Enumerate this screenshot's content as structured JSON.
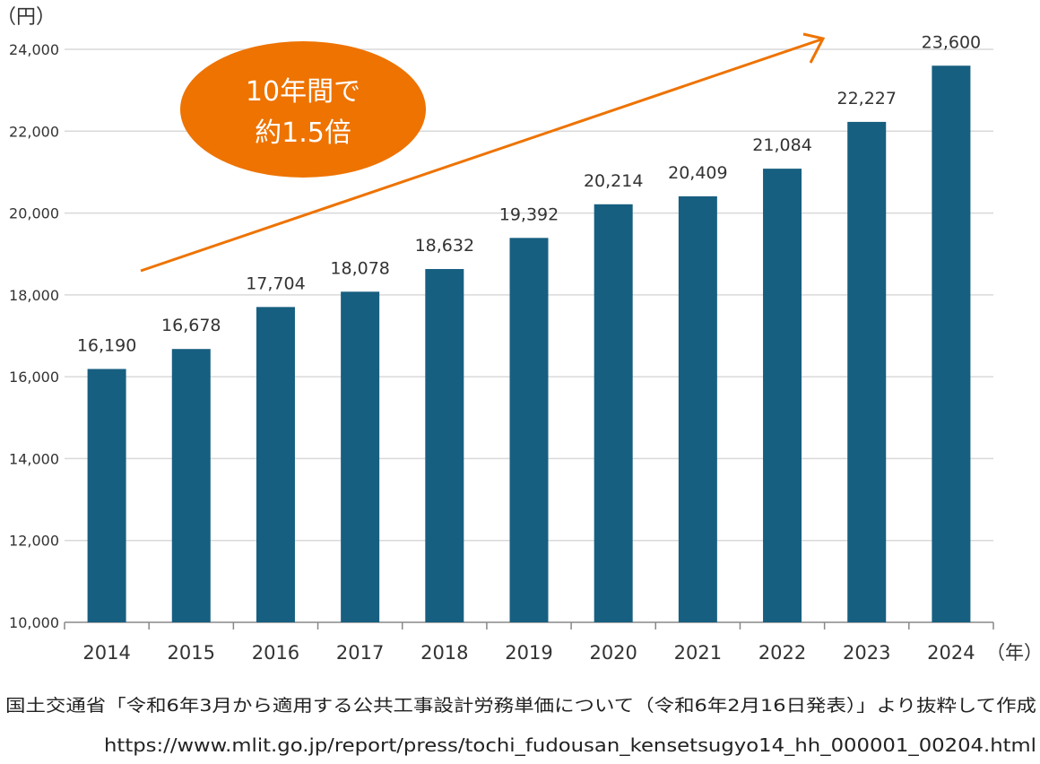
{
  "chart_data": {
    "type": "bar",
    "categories": [
      "2014",
      "2015",
      "2016",
      "2017",
      "2018",
      "2019",
      "2020",
      "2021",
      "2022",
      "2023",
      "2024"
    ],
    "values": [
      16190,
      16678,
      17704,
      18078,
      18632,
      19392,
      20214,
      20409,
      21084,
      22227,
      23600
    ],
    "data_labels": [
      "16,190",
      "16,678",
      "17,704",
      "18,078",
      "18,632",
      "19,392",
      "20,214",
      "20,409",
      "21,084",
      "22,227",
      "23,600"
    ],
    "ylabel": "（円）",
    "xlabel": "（年）",
    "ylim": [
      10000,
      24000
    ],
    "yticks": [
      "10,000",
      "12,000",
      "14,000",
      "16,000",
      "18,000",
      "20,000",
      "22,000",
      "24,000"
    ],
    "grid": true,
    "bar_color": "#175f80",
    "annotation": {
      "line1": "10年間で",
      "line2": "約1.5倍",
      "color": "#ee7300"
    }
  },
  "source": {
    "text": "国土交通省「令和6年3月から適用する公共工事設計労務単価について（令和6年2月16日発表）」より抜粋して作成",
    "url": "https://www.mlit.go.jp/report/press/tochi_fudousan_kensetsugyo14_hh_000001_00204.html"
  }
}
